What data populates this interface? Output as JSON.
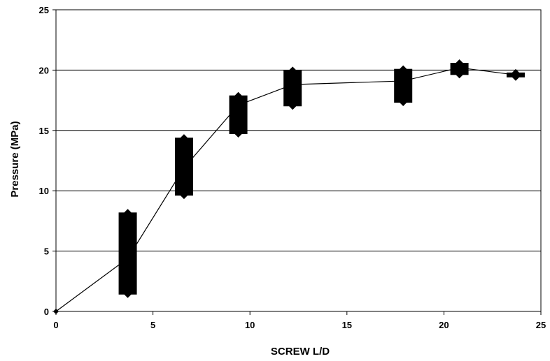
{
  "chart_data": {
    "type": "line",
    "title": "",
    "xlabel": "SCREW L/D",
    "ylabel": "Pressure (MPa)",
    "xlim": [
      0,
      25
    ],
    "ylim": [
      0,
      25
    ],
    "xticks": [
      0,
      5,
      10,
      15,
      20,
      25
    ],
    "yticks": [
      0,
      5,
      10,
      15,
      20,
      25
    ],
    "grid": "horizontal",
    "legend": "none",
    "series": [
      {
        "type": "line-with-markers",
        "x": [
          0,
          3.7,
          6.6,
          9.4,
          12.2,
          17.9,
          20.8,
          23.7
        ],
        "y": [
          0,
          4.4,
          11.9,
          17.1,
          18.8,
          19.1,
          20.2,
          19.6
        ]
      }
    ],
    "ranges": [
      {
        "x": 3.7,
        "low": 1.4,
        "high": 8.2
      },
      {
        "x": 6.6,
        "low": 9.6,
        "high": 14.4
      },
      {
        "x": 9.4,
        "low": 14.7,
        "high": 17.9
      },
      {
        "x": 12.2,
        "low": 17.0,
        "high": 20.0
      },
      {
        "x": 17.9,
        "low": 17.3,
        "high": 20.1
      },
      {
        "x": 20.8,
        "low": 19.6,
        "high": 20.6
      },
      {
        "x": 23.7,
        "low": 19.4,
        "high": 19.8
      }
    ],
    "colors": {
      "line": "#000000",
      "range": "#000000",
      "grid": "#000000"
    }
  }
}
